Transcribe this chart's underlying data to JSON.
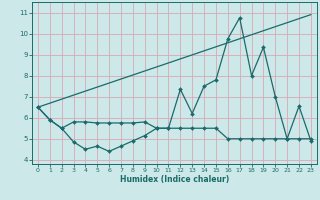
{
  "xlabel": "Humidex (Indice chaleur)",
  "bg_color": "#cce8e8",
  "line_color": "#1a6b6b",
  "grid_color": "#d8a8b8",
  "xlim": [
    -0.5,
    23.5
  ],
  "ylim": [
    3.8,
    11.5
  ],
  "yticks": [
    4,
    5,
    6,
    7,
    8,
    9,
    10,
    11
  ],
  "xticks": [
    0,
    1,
    2,
    3,
    4,
    5,
    6,
    7,
    8,
    9,
    10,
    11,
    12,
    13,
    14,
    15,
    16,
    17,
    18,
    19,
    20,
    21,
    22,
    23
  ],
  "line1_x": [
    0,
    1,
    2,
    3,
    4,
    5,
    6,
    7,
    8,
    9,
    10,
    11,
    12,
    13,
    14,
    15,
    16,
    17,
    18,
    19,
    20,
    21,
    22,
    23
  ],
  "line1_y": [
    6.5,
    5.9,
    5.5,
    4.85,
    4.5,
    4.65,
    4.4,
    4.65,
    4.9,
    5.15,
    5.5,
    5.5,
    7.35,
    6.2,
    7.5,
    7.8,
    9.75,
    10.75,
    8.0,
    9.35,
    7.0,
    5.0,
    6.55,
    4.9
  ],
  "line2_x": [
    0,
    1,
    2,
    3,
    4,
    5,
    6,
    7,
    8,
    9,
    10,
    11,
    12,
    13,
    14,
    15,
    16,
    17,
    18,
    19,
    20,
    21,
    22,
    23
  ],
  "line2_y": [
    6.5,
    5.9,
    5.5,
    5.8,
    5.8,
    5.75,
    5.75,
    5.75,
    5.75,
    5.8,
    5.5,
    5.5,
    5.5,
    5.5,
    5.5,
    5.5,
    5.0,
    5.0,
    5.0,
    5.0,
    5.0,
    5.0,
    5.0,
    5.0
  ],
  "line3_x": [
    0,
    23
  ],
  "line3_y": [
    6.5,
    10.9
  ]
}
